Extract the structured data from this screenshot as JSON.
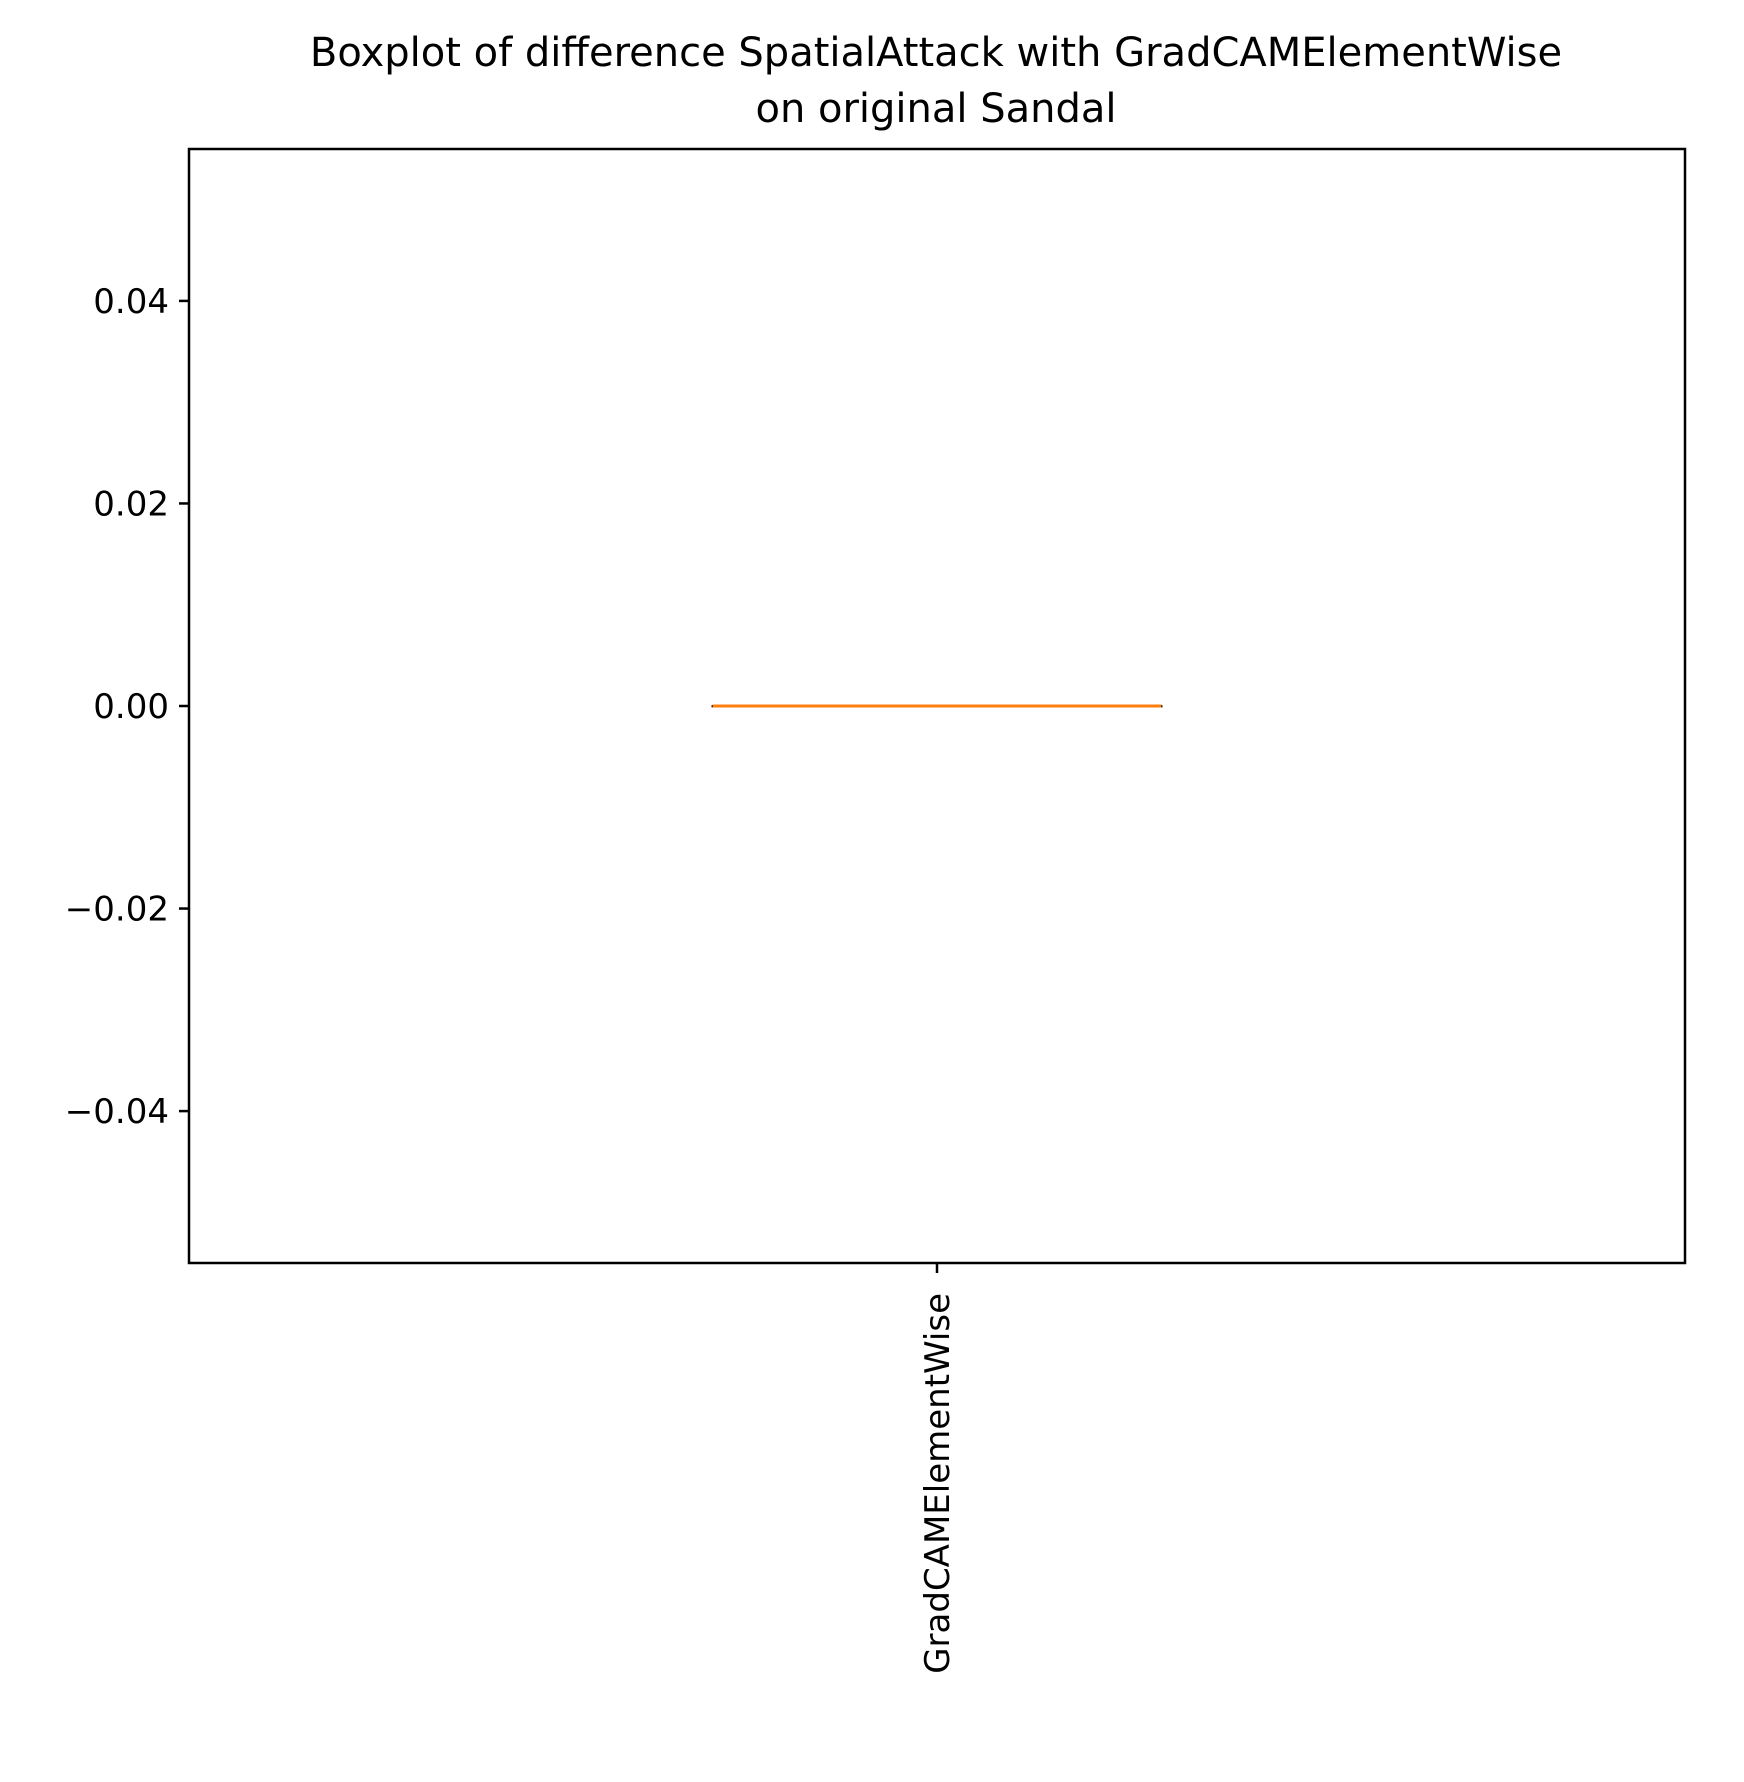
{
  "chart_data": {
    "type": "boxplot",
    "title_lines": [
      "Boxplot of difference SpatialAttack with GradCAMElementWise",
      "on original Sandal"
    ],
    "xlabel": "",
    "ylabel": "",
    "categories": [
      "GradCAMElementWise"
    ],
    "boxes": [
      {
        "category": "GradCAMElementWise",
        "min": 0.0,
        "q1": 0.0,
        "median": 0.0,
        "q3": 0.0,
        "max": 0.0
      }
    ],
    "ylim": [
      -0.055,
      0.055
    ],
    "yticks": [
      -0.04,
      -0.02,
      0.0,
      0.02,
      0.04
    ],
    "ytick_labels": [
      "−0.04",
      "−0.02",
      "0.00",
      "0.02",
      "0.04"
    ],
    "xtick_rotation": "vertical",
    "grid": false,
    "colors": {
      "median": "#ff7f0e",
      "box": "#000000",
      "axes": "#000000"
    }
  }
}
